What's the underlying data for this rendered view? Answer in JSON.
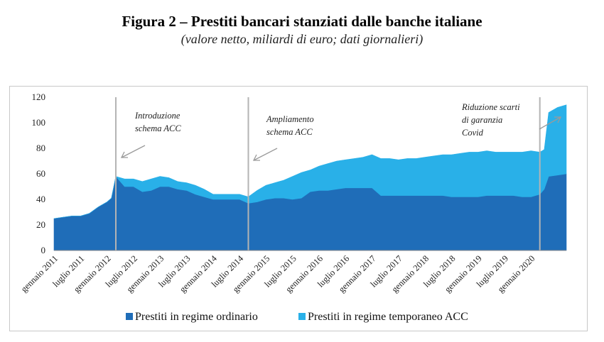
{
  "title": "Figura 2 – Prestiti bancari stanziati dalle banche italiane",
  "subtitle": "(valore netto, miliardi di euro; dati giornalieri)",
  "chart_data": {
    "type": "area",
    "stacked": true,
    "ylim": [
      0,
      120
    ],
    "yticks": [
      0,
      20,
      40,
      60,
      80,
      100,
      120
    ],
    "x_start": "2011-01",
    "x_end": "2020-09",
    "x_tick_labels": [
      "gennaio 2011",
      "luglio 2011",
      "gennaio 2012",
      "luglio 2012",
      "gennaio 2013",
      "luglio 2013",
      "gennaio 2014",
      "luglio 2014",
      "gennaio 2015",
      "luglio 2015",
      "gennaio 2016",
      "luglio 2016",
      "gennaio 2017",
      "luglio 2017",
      "gennaio 2018",
      "luglio 2018",
      "gennaio 2019",
      "luglio 2019",
      "gennaio 2020"
    ],
    "x": [
      "2011-01",
      "2011-03",
      "2011-05",
      "2011-07",
      "2011-09",
      "2011-11",
      "2012-01",
      "2012-02",
      "2012-03",
      "2012-05",
      "2012-07",
      "2012-09",
      "2012-11",
      "2013-01",
      "2013-03",
      "2013-05",
      "2013-07",
      "2013-09",
      "2013-11",
      "2014-01",
      "2014-03",
      "2014-05",
      "2014-07",
      "2014-09",
      "2014-11",
      "2015-01",
      "2015-03",
      "2015-05",
      "2015-07",
      "2015-09",
      "2015-11",
      "2016-01",
      "2016-03",
      "2016-05",
      "2016-07",
      "2016-09",
      "2016-11",
      "2017-01",
      "2017-03",
      "2017-05",
      "2017-07",
      "2017-09",
      "2017-11",
      "2018-01",
      "2018-03",
      "2018-05",
      "2018-07",
      "2018-09",
      "2018-11",
      "2019-01",
      "2019-03",
      "2019-05",
      "2019-07",
      "2019-09",
      "2019-11",
      "2020-01",
      "2020-03",
      "2020-04",
      "2020-05",
      "2020-07",
      "2020-09"
    ],
    "series": [
      {
        "name": "Prestiti in regime ordinario",
        "color": "#1f6db8",
        "values": [
          25,
          26,
          27,
          27,
          29,
          34,
          38,
          41,
          58,
          50,
          50,
          46,
          47,
          50,
          50,
          48,
          47,
          44,
          42,
          40,
          40,
          40,
          40,
          37,
          38,
          40,
          41,
          41,
          40,
          41,
          46,
          47,
          47,
          48,
          49,
          49,
          49,
          49,
          43,
          43,
          43,
          43,
          43,
          43,
          43,
          43,
          42,
          42,
          42,
          42,
          43,
          43,
          43,
          43,
          42,
          42,
          44,
          48,
          58,
          59,
          60
        ]
      },
      {
        "name": "Prestiti in regime temporaneo ACC",
        "color": "#29b0e8",
        "values": [
          0,
          0,
          0,
          0,
          0,
          0,
          0,
          0,
          0,
          6,
          6,
          8,
          9,
          8,
          7,
          6,
          6,
          7,
          6,
          4,
          4,
          4,
          4,
          5,
          9,
          11,
          12,
          14,
          18,
          20,
          17,
          19,
          21,
          22,
          22,
          23,
          24,
          26,
          29,
          29,
          28,
          29,
          29,
          30,
          31,
          32,
          33,
          34,
          35,
          35,
          35,
          34,
          34,
          34,
          35,
          36,
          33,
          31,
          50,
          53,
          54
        ]
      }
    ],
    "annotations": [
      {
        "x": "2012-03",
        "text": "Introduzione schema ACC"
      },
      {
        "x": "2014-09",
        "text": "Ampliamento schema ACC"
      },
      {
        "x": "2020-03",
        "text": "Riduzione scarti di garanzia Covid"
      }
    ],
    "annotation_lines": [
      "Introduzione",
      "schema ACC",
      "Ampliamento",
      "schema ACC",
      "Riduzione scarti",
      "di garanzia",
      "Covid"
    ],
    "legend_position": "bottom"
  }
}
